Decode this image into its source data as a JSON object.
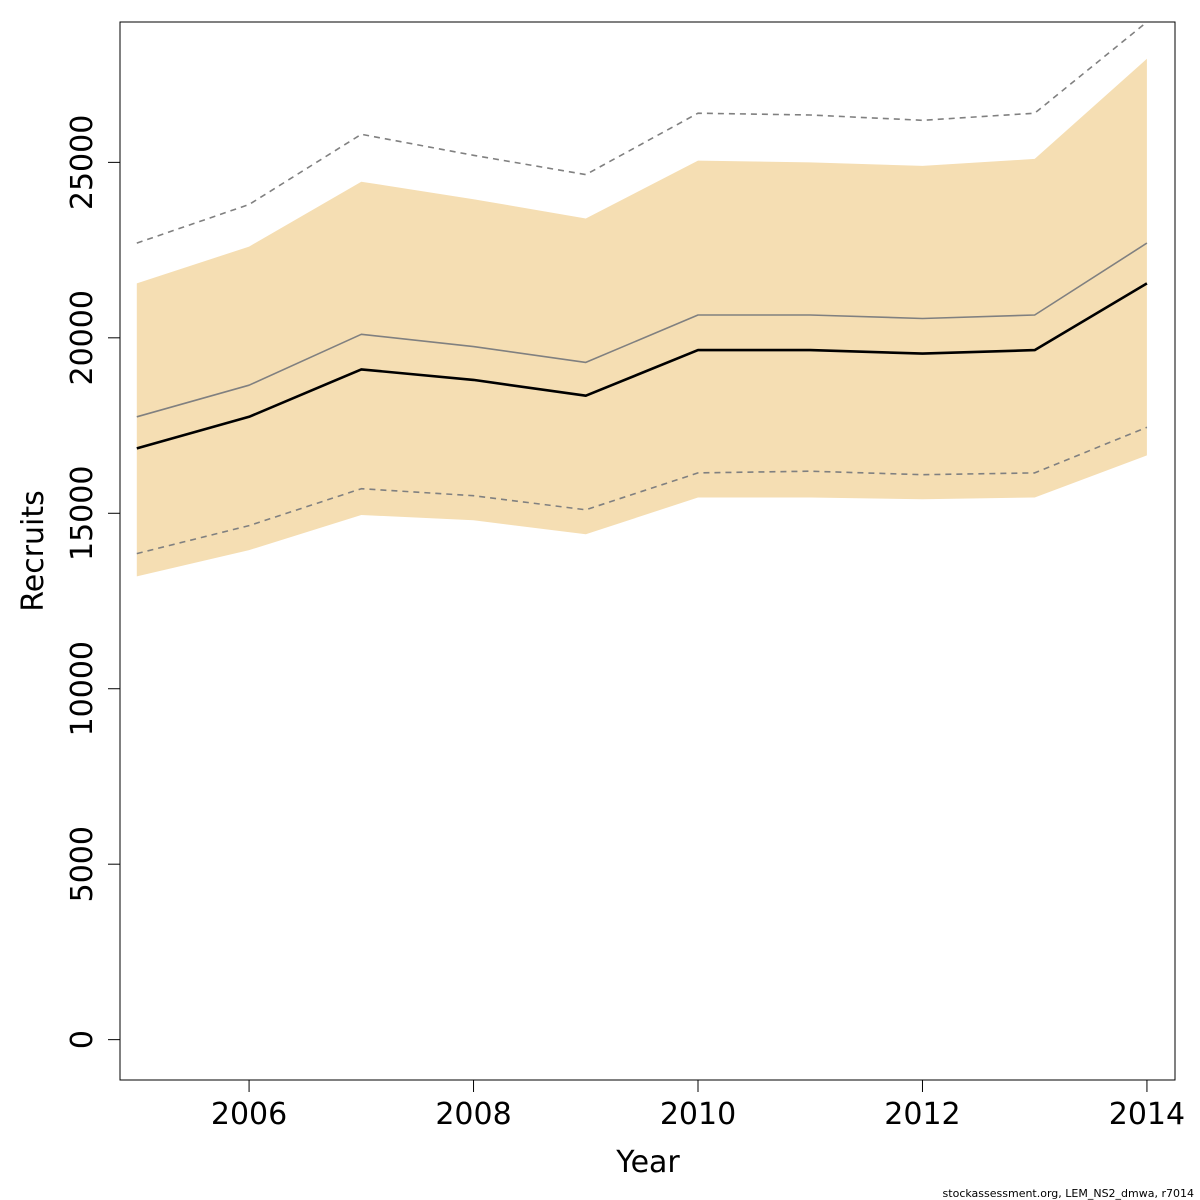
{
  "chart_data": {
    "type": "area",
    "xlabel": "Year",
    "ylabel": "Recruits",
    "xlim": [
      2004.85,
      2014.25
    ],
    "ylim": [
      -1150,
      29000
    ],
    "x_ticks": [
      2006,
      2008,
      2010,
      2012,
      2014
    ],
    "x_tick_labels": [
      "2006",
      "2008",
      "2010",
      "2012",
      "2014"
    ],
    "y_ticks": [
      0,
      5000,
      10000,
      15000,
      20000,
      25000
    ],
    "y_tick_labels": [
      "0",
      "5000",
      "10000",
      "15000",
      "20000",
      "25000"
    ],
    "x": [
      2005,
      2006,
      2007,
      2008,
      2009,
      2010,
      2011,
      2012,
      2013,
      2014
    ],
    "band": {
      "lower": [
        13200,
        13950,
        14950,
        14800,
        14400,
        15450,
        15450,
        15400,
        15450,
        16650
      ],
      "upper": [
        21550,
        22600,
        24450,
        23950,
        23400,
        25050,
        25000,
        24900,
        25100,
        27950
      ]
    },
    "series": [
      {
        "role": "estimate",
        "values": [
          16850,
          17750,
          19100,
          18800,
          18350,
          19650,
          19650,
          19550,
          19650,
          21550
        ]
      },
      {
        "role": "reference",
        "values": [
          17750,
          18650,
          20100,
          19750,
          19300,
          20650,
          20650,
          20550,
          20650,
          22700
        ]
      },
      {
        "role": "reference-upper",
        "values": [
          22700,
          23800,
          25800,
          25200,
          24650,
          26400,
          26350,
          26200,
          26400,
          29000
        ]
      },
      {
        "role": "reference-lower",
        "values": [
          13850,
          14650,
          15700,
          15500,
          15100,
          16150,
          16200,
          16100,
          16150,
          17450
        ]
      }
    ],
    "colors": {
      "band": "#f5deb3",
      "estimate": "#000000",
      "reference": "#808080",
      "reference_bounds": "#808080"
    },
    "grid": false,
    "legend": "none"
  },
  "footer": "stockassessment.org, LEM_NS2_dmwa, r7014"
}
